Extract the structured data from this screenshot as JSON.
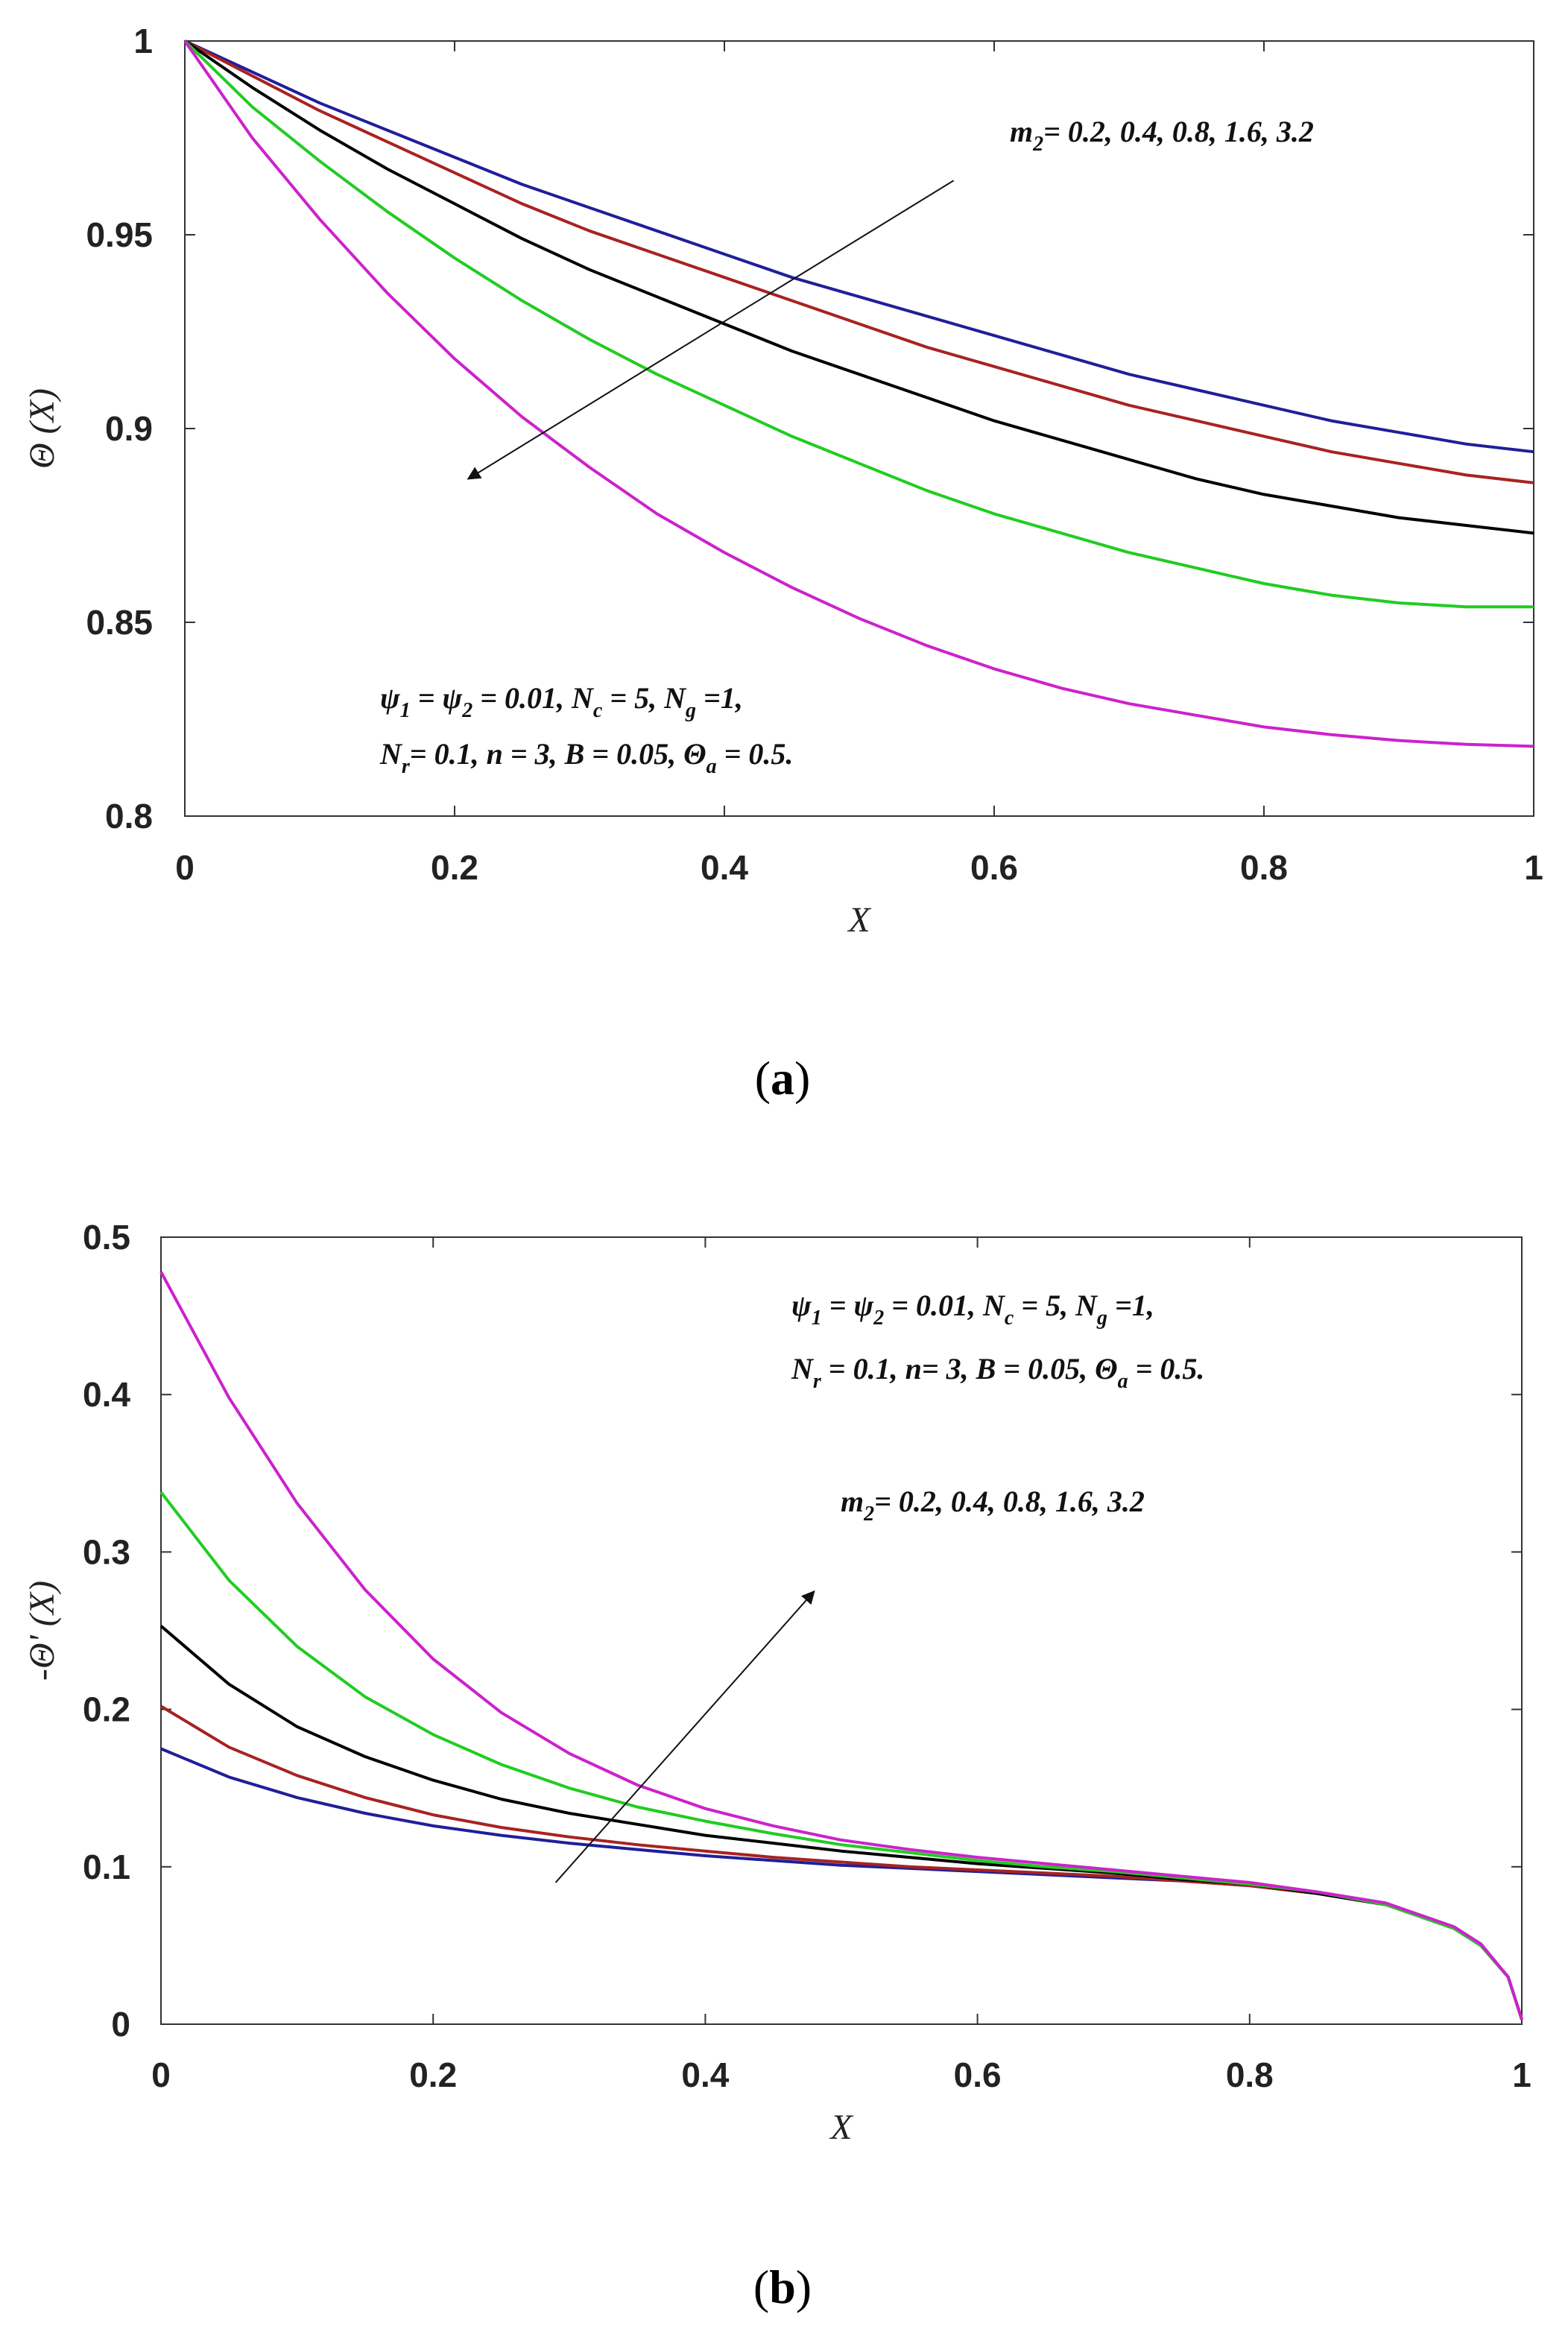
{
  "chart_data": [
    {
      "type": "line",
      "panel": "a",
      "caption_letter": "a",
      "xlabel": "X",
      "ylabel": "Θ (X)",
      "xlim": [
        0,
        1
      ],
      "ylim": [
        0.8,
        1
      ],
      "xticks": [
        0,
        0.2,
        0.4,
        0.6,
        0.8,
        1
      ],
      "xtick_labels": [
        "0",
        "0.2",
        "0.4",
        "0.6",
        "0.8",
        "1"
      ],
      "yticks": [
        0.8,
        0.85,
        0.9,
        0.95,
        1
      ],
      "ytick_labels": [
        "0.8",
        "0.85",
        "0.9",
        "0.95",
        "1"
      ],
      "x": [
        0,
        0.05,
        0.1,
        0.15,
        0.2,
        0.25,
        0.3,
        0.35,
        0.4,
        0.45,
        0.5,
        0.55,
        0.6,
        0.65,
        0.7,
        0.75,
        0.8,
        0.85,
        0.9,
        0.95,
        1
      ],
      "series": [
        {
          "name": "m2 = 0.2",
          "color": "#1f1f9a",
          "values": [
            1,
            0.992,
            0.984,
            0.977,
            0.97,
            0.963,
            0.957,
            0.951,
            0.945,
            0.939,
            0.934,
            0.929,
            0.924,
            0.919,
            0.914,
            0.91,
            0.906,
            0.902,
            0.899,
            0.896,
            0.894
          ]
        },
        {
          "name": "m2 = 0.4",
          "color": "#a82222",
          "values": [
            1,
            0.991,
            0.982,
            0.974,
            0.966,
            0.958,
            0.951,
            0.945,
            0.939,
            0.933,
            0.927,
            0.921,
            0.916,
            0.911,
            0.906,
            0.902,
            0.898,
            0.894,
            0.891,
            0.888,
            0.886
          ]
        },
        {
          "name": "m2 = 0.8",
          "color": "#000000",
          "values": [
            1,
            0.988,
            0.977,
            0.967,
            0.958,
            0.949,
            0.941,
            0.934,
            0.927,
            0.92,
            0.914,
            0.908,
            0.902,
            0.897,
            0.892,
            0.887,
            0.883,
            0.88,
            0.877,
            0.875,
            0.873
          ]
        },
        {
          "name": "m2 = 1.6",
          "color": "#22cc22",
          "values": [
            1,
            0.983,
            0.969,
            0.956,
            0.944,
            0.933,
            0.923,
            0.914,
            0.906,
            0.898,
            0.891,
            0.884,
            0.878,
            0.873,
            0.868,
            0.864,
            0.86,
            0.857,
            0.855,
            0.854,
            0.854
          ]
        },
        {
          "name": "m2 = 3.2",
          "color": "#cc22cc",
          "values": [
            1,
            0.975,
            0.954,
            0.935,
            0.918,
            0.903,
            0.89,
            0.878,
            0.868,
            0.859,
            0.851,
            0.844,
            0.838,
            0.833,
            0.829,
            0.826,
            0.823,
            0.821,
            0.8195,
            0.8185,
            0.818
          ]
        }
      ],
      "annotation_params": {
        "line1": [
          {
            "t": "ψ"
          },
          {
            "t": "1",
            "sub": true
          },
          {
            "t": " = ψ"
          },
          {
            "t": "2",
            "sub": true
          },
          {
            "t": " = 0.01, N"
          },
          {
            "t": "c",
            "sub": true
          },
          {
            "t": " = 5, N"
          },
          {
            "t": "g",
            "sub": true
          },
          {
            "t": " =1,"
          }
        ],
        "line2": [
          {
            "t": "N"
          },
          {
            "t": "r",
            "sub": true
          },
          {
            "t": "= 0.1, n = 3, B = 0.05,  Θ"
          },
          {
            "t": "a",
            "sub": true
          },
          {
            "t": " = 0.5."
          }
        ]
      },
      "annotation_m2": [
        {
          "t": "m"
        },
        {
          "t": "2",
          "sub": true
        },
        {
          "t": "= 0.2, 0.4, 0.8, 1.6, 3.2"
        }
      ],
      "arrow": {
        "from": [
          0.57,
          0.964
        ],
        "to": [
          0.21,
          0.887
        ]
      }
    },
    {
      "type": "line",
      "panel": "b",
      "caption_letter": "b",
      "xlabel": "X",
      "ylabel": "-Θ' (X)",
      "xlim": [
        0,
        1
      ],
      "ylim": [
        0,
        0.5
      ],
      "xticks": [
        0,
        0.2,
        0.4,
        0.6,
        0.8,
        1
      ],
      "xtick_labels": [
        "0",
        "0.2",
        "0.4",
        "0.6",
        "0.8",
        "1"
      ],
      "yticks": [
        0,
        0.1,
        0.2,
        0.3,
        0.4,
        0.5
      ],
      "ytick_labels": [
        "0",
        "0.1",
        "0.2",
        "0.3",
        "0.4",
        "0.5"
      ],
      "x": [
        0,
        0.05,
        0.1,
        0.15,
        0.2,
        0.25,
        0.3,
        0.35,
        0.4,
        0.45,
        0.5,
        0.55,
        0.6,
        0.65,
        0.7,
        0.75,
        0.8,
        0.85,
        0.9,
        0.95,
        0.97,
        0.99,
        1
      ],
      "series": [
        {
          "name": "m2 = 0.2",
          "color": "#1f1f9a",
          "values": [
            0.175,
            0.157,
            0.144,
            0.134,
            0.126,
            0.12,
            0.115,
            0.111,
            0.107,
            0.104,
            0.101,
            0.099,
            0.097,
            0.095,
            0.093,
            0.091,
            0.088,
            0.083,
            0.076,
            0.061,
            0.05,
            0.03,
            0.003
          ]
        },
        {
          "name": "m2 = 0.4",
          "color": "#a82222",
          "values": [
            0.202,
            0.176,
            0.158,
            0.144,
            0.133,
            0.125,
            0.119,
            0.114,
            0.11,
            0.106,
            0.103,
            0.1,
            0.098,
            0.096,
            0.094,
            0.091,
            0.088,
            0.083,
            0.076,
            0.061,
            0.05,
            0.03,
            0.003
          ]
        },
        {
          "name": "m2 = 0.8",
          "color": "#000000",
          "values": [
            0.253,
            0.216,
            0.189,
            0.17,
            0.155,
            0.143,
            0.134,
            0.127,
            0.12,
            0.115,
            0.11,
            0.106,
            0.102,
            0.099,
            0.096,
            0.092,
            0.089,
            0.083,
            0.076,
            0.061,
            0.05,
            0.03,
            0.003
          ]
        },
        {
          "name": "m2 = 1.6",
          "color": "#22cc22",
          "values": [
            0.338,
            0.282,
            0.24,
            0.208,
            0.184,
            0.165,
            0.15,
            0.138,
            0.129,
            0.121,
            0.114,
            0.109,
            0.104,
            0.1,
            0.097,
            0.093,
            0.089,
            0.084,
            0.076,
            0.061,
            0.05,
            0.03,
            0.003
          ]
        },
        {
          "name": "m2 = 3.2",
          "color": "#cc22cc",
          "values": [
            0.478,
            0.398,
            0.331,
            0.276,
            0.232,
            0.198,
            0.172,
            0.152,
            0.137,
            0.126,
            0.117,
            0.111,
            0.106,
            0.102,
            0.098,
            0.094,
            0.09,
            0.084,
            0.077,
            0.062,
            0.051,
            0.03,
            0.003
          ]
        }
      ],
      "annotation_params": {
        "line1": [
          {
            "t": "ψ"
          },
          {
            "t": "1",
            "sub": true
          },
          {
            "t": " = ψ"
          },
          {
            "t": "2",
            "sub": true
          },
          {
            "t": " = 0.01, N"
          },
          {
            "t": "c",
            "sub": true
          },
          {
            "t": " = 5, N"
          },
          {
            "t": "g",
            "sub": true
          },
          {
            "t": " =1,"
          }
        ],
        "line2": [
          {
            "t": "N"
          },
          {
            "t": "r",
            "sub": true
          },
          {
            "t": " = 0.1, n= 3, B = 0.05,  Θ"
          },
          {
            "t": "a",
            "sub": true
          },
          {
            "t": " = 0.5."
          }
        ]
      },
      "annotation_m2": [
        {
          "t": "m"
        },
        {
          "t": "2",
          "sub": true
        },
        {
          "t": "= 0.2, 0.4, 0.8, 1.6, 3.2"
        }
      ],
      "arrow": {
        "from": [
          0.29,
          0.09
        ],
        "to": [
          0.48,
          0.275
        ]
      }
    }
  ]
}
